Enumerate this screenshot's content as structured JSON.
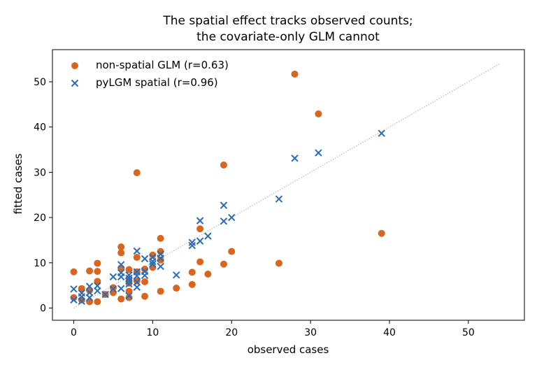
{
  "chart_data": {
    "type": "scatter",
    "title": [
      "The spatial effect tracks observed counts;",
      "the covariate-only GLM cannot"
    ],
    "xlabel": "observed cases",
    "ylabel": "fitted cases",
    "xlim": [
      -2.7,
      57.1
    ],
    "ylim": [
      -2.7,
      57.1
    ],
    "xticks": [
      0,
      10,
      20,
      30,
      40,
      50
    ],
    "yticks": [
      0,
      10,
      20,
      30,
      40,
      50
    ],
    "grid": false,
    "legend_position": "top-left",
    "reference_line": {
      "style": "dotted",
      "color": "#aaaaaa",
      "from": [
        0,
        0
      ],
      "to": [
        54,
        54
      ]
    },
    "series": [
      {
        "name": "non-spatial GLM  (r=0.63)",
        "marker": "circle",
        "color": "#d9651f",
        "points": [
          [
            0,
            2.3
          ],
          [
            0,
            8.0
          ],
          [
            1,
            4.3
          ],
          [
            1,
            1.8
          ],
          [
            2,
            3.9
          ],
          [
            2,
            8.2
          ],
          [
            2,
            1.4
          ],
          [
            3,
            9.9
          ],
          [
            3,
            8.1
          ],
          [
            3,
            5.9
          ],
          [
            3,
            1.4
          ],
          [
            4,
            3.0
          ],
          [
            5,
            4.5
          ],
          [
            5,
            3.4
          ],
          [
            6,
            2.0
          ],
          [
            6,
            13.5
          ],
          [
            6,
            12.2
          ],
          [
            6,
            8.8
          ],
          [
            7,
            8.5
          ],
          [
            7,
            6.5
          ],
          [
            7,
            5.5
          ],
          [
            7,
            3.7
          ],
          [
            7,
            2.3
          ],
          [
            8,
            29.9
          ],
          [
            8,
            11.2
          ],
          [
            8,
            8.0
          ],
          [
            8,
            6.0
          ],
          [
            9,
            8.6
          ],
          [
            9,
            5.8
          ],
          [
            9,
            2.6
          ],
          [
            10,
            11.7
          ],
          [
            10,
            9.0
          ],
          [
            11,
            15.4
          ],
          [
            11,
            12.5
          ],
          [
            11,
            10.6
          ],
          [
            11,
            3.7
          ],
          [
            13,
            4.4
          ],
          [
            15,
            7.9
          ],
          [
            15,
            5.2
          ],
          [
            16,
            17.5
          ],
          [
            16,
            10.2
          ],
          [
            17,
            7.5
          ],
          [
            19,
            31.6
          ],
          [
            19,
            9.7
          ],
          [
            20,
            12.5
          ],
          [
            26,
            9.9
          ],
          [
            28,
            51.7
          ],
          [
            31,
            42.9
          ],
          [
            39,
            16.5
          ]
        ]
      },
      {
        "name": "pyLGM spatial  (r=0.96)",
        "marker": "x",
        "color": "#2b6cb6",
        "points": [
          [
            0,
            4.2
          ],
          [
            0,
            1.8
          ],
          [
            1,
            3.3
          ],
          [
            1,
            2.5
          ],
          [
            1,
            1.5
          ],
          [
            2,
            4.8
          ],
          [
            2,
            3.4
          ],
          [
            2,
            2.3
          ],
          [
            3,
            4.9
          ],
          [
            3,
            3.8
          ],
          [
            4,
            3.0
          ],
          [
            5,
            6.9
          ],
          [
            5,
            4.2
          ],
          [
            6,
            9.6
          ],
          [
            6,
            7.8
          ],
          [
            6,
            6.9
          ],
          [
            6,
            4.3
          ],
          [
            7,
            7.3
          ],
          [
            7,
            6.6
          ],
          [
            7,
            6.0
          ],
          [
            7,
            5.3
          ],
          [
            7,
            2.7
          ],
          [
            8,
            12.6
          ],
          [
            8,
            8.0
          ],
          [
            8,
            7.1
          ],
          [
            8,
            5.7
          ],
          [
            8,
            4.6
          ],
          [
            9,
            10.9
          ],
          [
            9,
            8.1
          ],
          [
            9,
            7.2
          ],
          [
            10,
            11.2
          ],
          [
            10,
            10.3
          ],
          [
            10,
            9.7
          ],
          [
            11,
            11.9
          ],
          [
            11,
            11.0
          ],
          [
            11,
            9.2
          ],
          [
            13,
            7.3
          ],
          [
            15,
            14.5
          ],
          [
            15,
            13.8
          ],
          [
            16,
            19.3
          ],
          [
            16,
            14.8
          ],
          [
            17,
            15.9
          ],
          [
            19,
            22.7
          ],
          [
            19,
            19.2
          ],
          [
            20,
            20.0
          ],
          [
            26,
            24.1
          ],
          [
            28,
            33.1
          ],
          [
            31,
            34.3
          ],
          [
            39,
            38.6
          ]
        ]
      }
    ]
  }
}
